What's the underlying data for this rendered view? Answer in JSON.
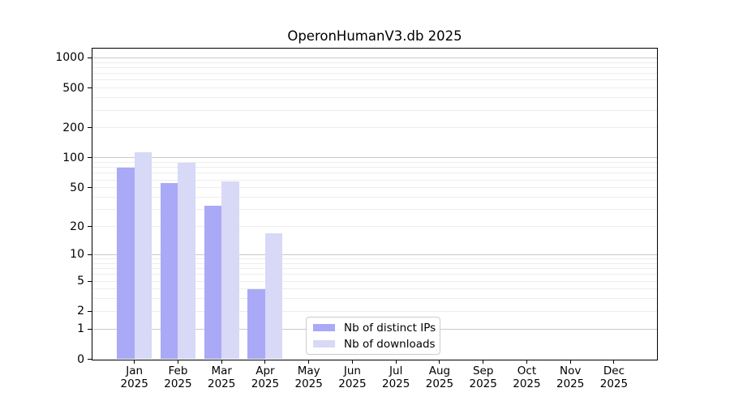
{
  "title": "OperonHumanV3.db 2025",
  "colors": {
    "distinct_ips_bar": "#a9a9f7",
    "downloads_bar": "#d8d8f7",
    "major_grid": "#c9c9c9",
    "minor_grid": "#ededed",
    "axis_line": "#000000",
    "legend_border": "#cccccc"
  },
  "legend": {
    "position": "lower center",
    "items": [
      {
        "label": "Nb of distinct IPs",
        "color": "#a9a9f7"
      },
      {
        "label": "Nb of downloads",
        "color": "#d8d8f7"
      }
    ]
  },
  "chart_data": {
    "type": "bar",
    "title": "OperonHumanV3.db 2025",
    "categories": [
      {
        "month": "Jan",
        "year": "2025"
      },
      {
        "month": "Feb",
        "year": "2025"
      },
      {
        "month": "Mar",
        "year": "2025"
      },
      {
        "month": "Apr",
        "year": "2025"
      },
      {
        "month": "May",
        "year": "2025"
      },
      {
        "month": "Jun",
        "year": "2025"
      },
      {
        "month": "Jul",
        "year": "2025"
      },
      {
        "month": "Aug",
        "year": "2025"
      },
      {
        "month": "Sep",
        "year": "2025"
      },
      {
        "month": "Oct",
        "year": "2025"
      },
      {
        "month": "Nov",
        "year": "2025"
      },
      {
        "month": "Dec",
        "year": "2025"
      }
    ],
    "series": [
      {
        "name": "Nb of distinct IPs",
        "color": "#a9a9f7",
        "values": [
          80,
          56,
          33,
          4,
          0,
          0,
          0,
          0,
          0,
          0,
          0,
          0
        ]
      },
      {
        "name": "Nb of downloads",
        "color": "#d8d8f7",
        "values": [
          115,
          90,
          58,
          17,
          0,
          0,
          0,
          0,
          0,
          0,
          0,
          0
        ]
      }
    ],
    "xlabel": "",
    "ylabel": "",
    "yscale": "log1p",
    "yticks": [
      0,
      1,
      2,
      5,
      10,
      20,
      50,
      100,
      200,
      500,
      1000
    ],
    "ylim": [
      0,
      1200
    ],
    "grid": "horizontal; major lines at powers of 10, faint minor lines at 2-9 x 10^k",
    "legend_position": "lower center"
  }
}
